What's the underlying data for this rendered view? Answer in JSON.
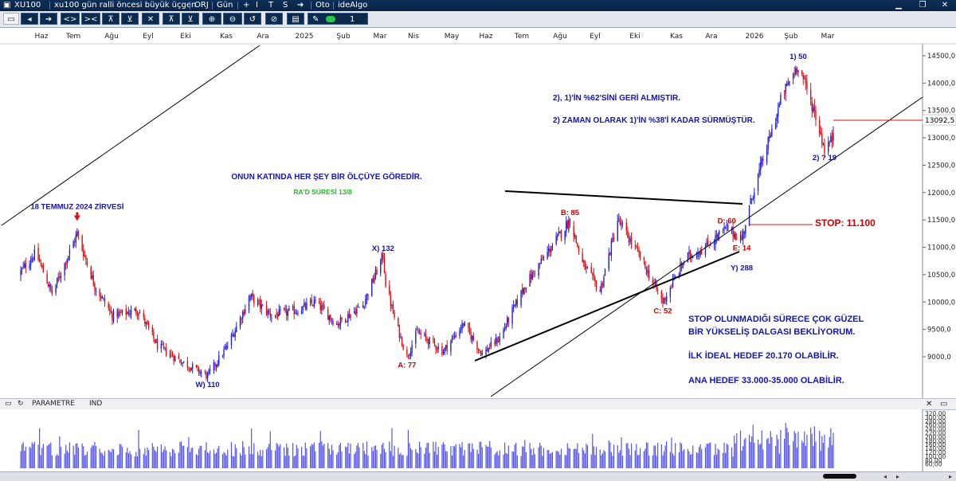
{
  "window": {
    "symbol": "XU100",
    "chart_name": "xu100 gün ralli öncesi büyük üçgen",
    "mode": "ORJ",
    "period": "Gün",
    "auto": "Oto",
    "brand": "ideAlgo",
    "menu_glyphs": [
      "+",
      "I",
      "T",
      "S",
      "➔"
    ],
    "controls": [
      "▁",
      "❐",
      "✕"
    ]
  },
  "toolbar": {
    "buttons": [
      "◂",
      "➔",
      "<>",
      "><",
      "⊼",
      "⊻",
      "✕",
      "⊼",
      "⊻",
      "⊕",
      "⊖",
      "↺",
      "⊘",
      "▤",
      "✎"
    ],
    "line_width": "1"
  },
  "panel": {
    "name": "PARAMETRE",
    "indicator": "IND"
  },
  "colors": {
    "up": "#2222dd",
    "down": "#dd1111",
    "label_blue": "#1414b4",
    "label_red": "#cc0000",
    "label_green": "#22bb22",
    "pattern_line": "#000000",
    "price_line": "#dd1111",
    "volume": "#5555ee"
  },
  "chart_data": {
    "type": "candlestick",
    "title": "",
    "x_ticks": [
      "Haz",
      "Tem",
      "Ağu",
      "Eyl",
      "Eki",
      "Kas",
      "Ara",
      "2025",
      "Şub",
      "Mar",
      "Nis",
      "May",
      "Haz",
      "Tem",
      "Ağu",
      "Eyl",
      "Eki",
      "Kas",
      "Ara",
      "2026",
      "Şub",
      "Mar"
    ],
    "y_ticks": [
      "14500,0",
      "14000,0",
      "13500,0",
      "13000,0",
      "12500,0",
      "12000,0",
      "11500,0",
      "11000,0",
      "10500,0",
      "10000,0",
      "9500,0",
      "9000,0"
    ],
    "ylim": [
      8700,
      14700
    ],
    "last_price": "13092,5",
    "waypoints": [
      {
        "date": "2024-06-01",
        "close": 10500
      },
      {
        "date": "2024-06-15",
        "close": 10900
      },
      {
        "date": "2024-06-28",
        "close": 10150
      },
      {
        "date": "2024-07-18",
        "close": 11250
      },
      {
        "date": "2024-08-01",
        "close": 10300
      },
      {
        "date": "2024-08-15",
        "close": 9750
      },
      {
        "date": "2024-09-05",
        "close": 9850
      },
      {
        "date": "2024-09-20",
        "close": 9200
      },
      {
        "date": "2024-10-10",
        "close": 8900
      },
      {
        "date": "2024-10-30",
        "close": 8650
      },
      {
        "date": "2024-11-15",
        "close": 9200
      },
      {
        "date": "2024-12-03",
        "close": 10100
      },
      {
        "date": "2024-12-20",
        "close": 9750
      },
      {
        "date": "2025-01-10",
        "close": 9850
      },
      {
        "date": "2025-01-24",
        "close": 10000
      },
      {
        "date": "2025-02-10",
        "close": 9600
      },
      {
        "date": "2025-03-03",
        "close": 9950
      },
      {
        "date": "2025-03-19",
        "close": 10850
      },
      {
        "date": "2025-03-21",
        "close": 10350
      },
      {
        "date": "2025-03-28",
        "close": 9700
      },
      {
        "date": "2025-04-07",
        "close": 9000
      },
      {
        "date": "2025-04-15",
        "close": 9450
      },
      {
        "date": "2025-05-06",
        "close": 9100
      },
      {
        "date": "2025-05-22",
        "close": 9600
      },
      {
        "date": "2025-06-06",
        "close": 9050
      },
      {
        "date": "2025-06-20",
        "close": 9350
      },
      {
        "date": "2025-07-10",
        "close": 10300
      },
      {
        "date": "2025-07-31",
        "close": 11000
      },
      {
        "date": "2025-08-15",
        "close": 11500
      },
      {
        "date": "2025-08-25",
        "close": 10700
      },
      {
        "date": "2025-09-08",
        "close": 10200
      },
      {
        "date": "2025-09-22",
        "close": 11500
      },
      {
        "date": "2025-10-08",
        "close": 10900
      },
      {
        "date": "2025-10-28",
        "close": 10000
      },
      {
        "date": "2025-11-15",
        "close": 10800
      },
      {
        "date": "2025-12-01",
        "close": 11000
      },
      {
        "date": "2025-12-18",
        "close": 11350
      },
      {
        "date": "2025-12-30",
        "close": 11150
      },
      {
        "date": "2026-01-08",
        "close": 12000
      },
      {
        "date": "2026-01-20",
        "close": 12900
      },
      {
        "date": "2026-01-31",
        "close": 13750
      },
      {
        "date": "2026-02-13",
        "close": 14350
      },
      {
        "date": "2026-02-27",
        "close": 13400
      },
      {
        "date": "2026-03-06",
        "close": 12800
      },
      {
        "date": "2026-03-13",
        "close": 13000
      }
    ],
    "wave_labels": [
      {
        "text": "18 TEMMUZ 2024 ZİRVESİ",
        "date": "2024-07-18",
        "value": 11350,
        "color": "blue",
        "marker": "arrow-down"
      },
      {
        "text": "W) 110",
        "date": "2024-10-30",
        "value": 8620,
        "color": "blue",
        "anchor": "below"
      },
      {
        "text": "X) 132",
        "date": "2025-03-19",
        "value": 10880,
        "color": "blue",
        "anchor": "above"
      },
      {
        "text": "A: 77",
        "date": "2025-04-07",
        "value": 8980,
        "color": "red",
        "anchor": "below"
      },
      {
        "text": "B: 85",
        "date": "2025-08-15",
        "value": 11530,
        "color": "red",
        "anchor": "above"
      },
      {
        "text": "C: 52",
        "date": "2025-10-28",
        "value": 9970,
        "color": "red",
        "anchor": "below"
      },
      {
        "text": "D: 60",
        "date": "2025-12-18",
        "value": 11380,
        "color": "red",
        "anchor": "above"
      },
      {
        "text": "E: 14",
        "date": "2025-12-30",
        "value": 11120,
        "color": "red",
        "anchor": "below"
      },
      {
        "text": "Y) 288",
        "date": "2025-12-30",
        "value": 10940,
        "color": "blue",
        "anchor": "below"
      },
      {
        "text": "1) 50",
        "date": "2026-02-13",
        "value": 14380,
        "color": "blue",
        "anchor": "above"
      },
      {
        "text": "2) ? 19",
        "date": "2026-03-06",
        "value": 12770,
        "color": "blue",
        "anchor": "below"
      }
    ],
    "annotations": [
      {
        "text": "ONUN KATINDA HER ŞEY BİR ÖLÇÜYE GÖREDİR.",
        "color": "blue"
      },
      {
        "text": "RA'D SÜRESİ 13/8",
        "color": "green"
      },
      {
        "text": "2), 1)'İN %62'SİNİ GERİ ALMIŞTIR.",
        "color": "blue"
      },
      {
        "text": "2) ZAMAN OLARAK 1)'İN %38'İ KADAR SÜRMÜŞTÜR.",
        "color": "blue"
      },
      {
        "text": "STOP: 11.100",
        "color": "red"
      },
      {
        "text": "STOP OLUNMADIĞI SÜRECE ÇOK GÜZEL",
        "color": "blue"
      },
      {
        "text": "BİR YÜKSELİŞ DALGASI BEKLİYORUM.",
        "color": "blue"
      },
      {
        "text": "İLK İDEAL HEDEF 20.170 OLABİLİR.",
        "color": "blue"
      },
      {
        "text": "ANA HEDEF 33.000-35.000 OLABİLİR.",
        "color": "blue"
      }
    ],
    "volume": {
      "y_ticks": [
        "320,00",
        "300,00",
        "280,00",
        "260,00",
        "240,00",
        "220,00",
        "200,00",
        "180,00",
        "160,00",
        "140,00",
        "120,00",
        "100,00",
        "80,00",
        "60,00"
      ]
    }
  }
}
